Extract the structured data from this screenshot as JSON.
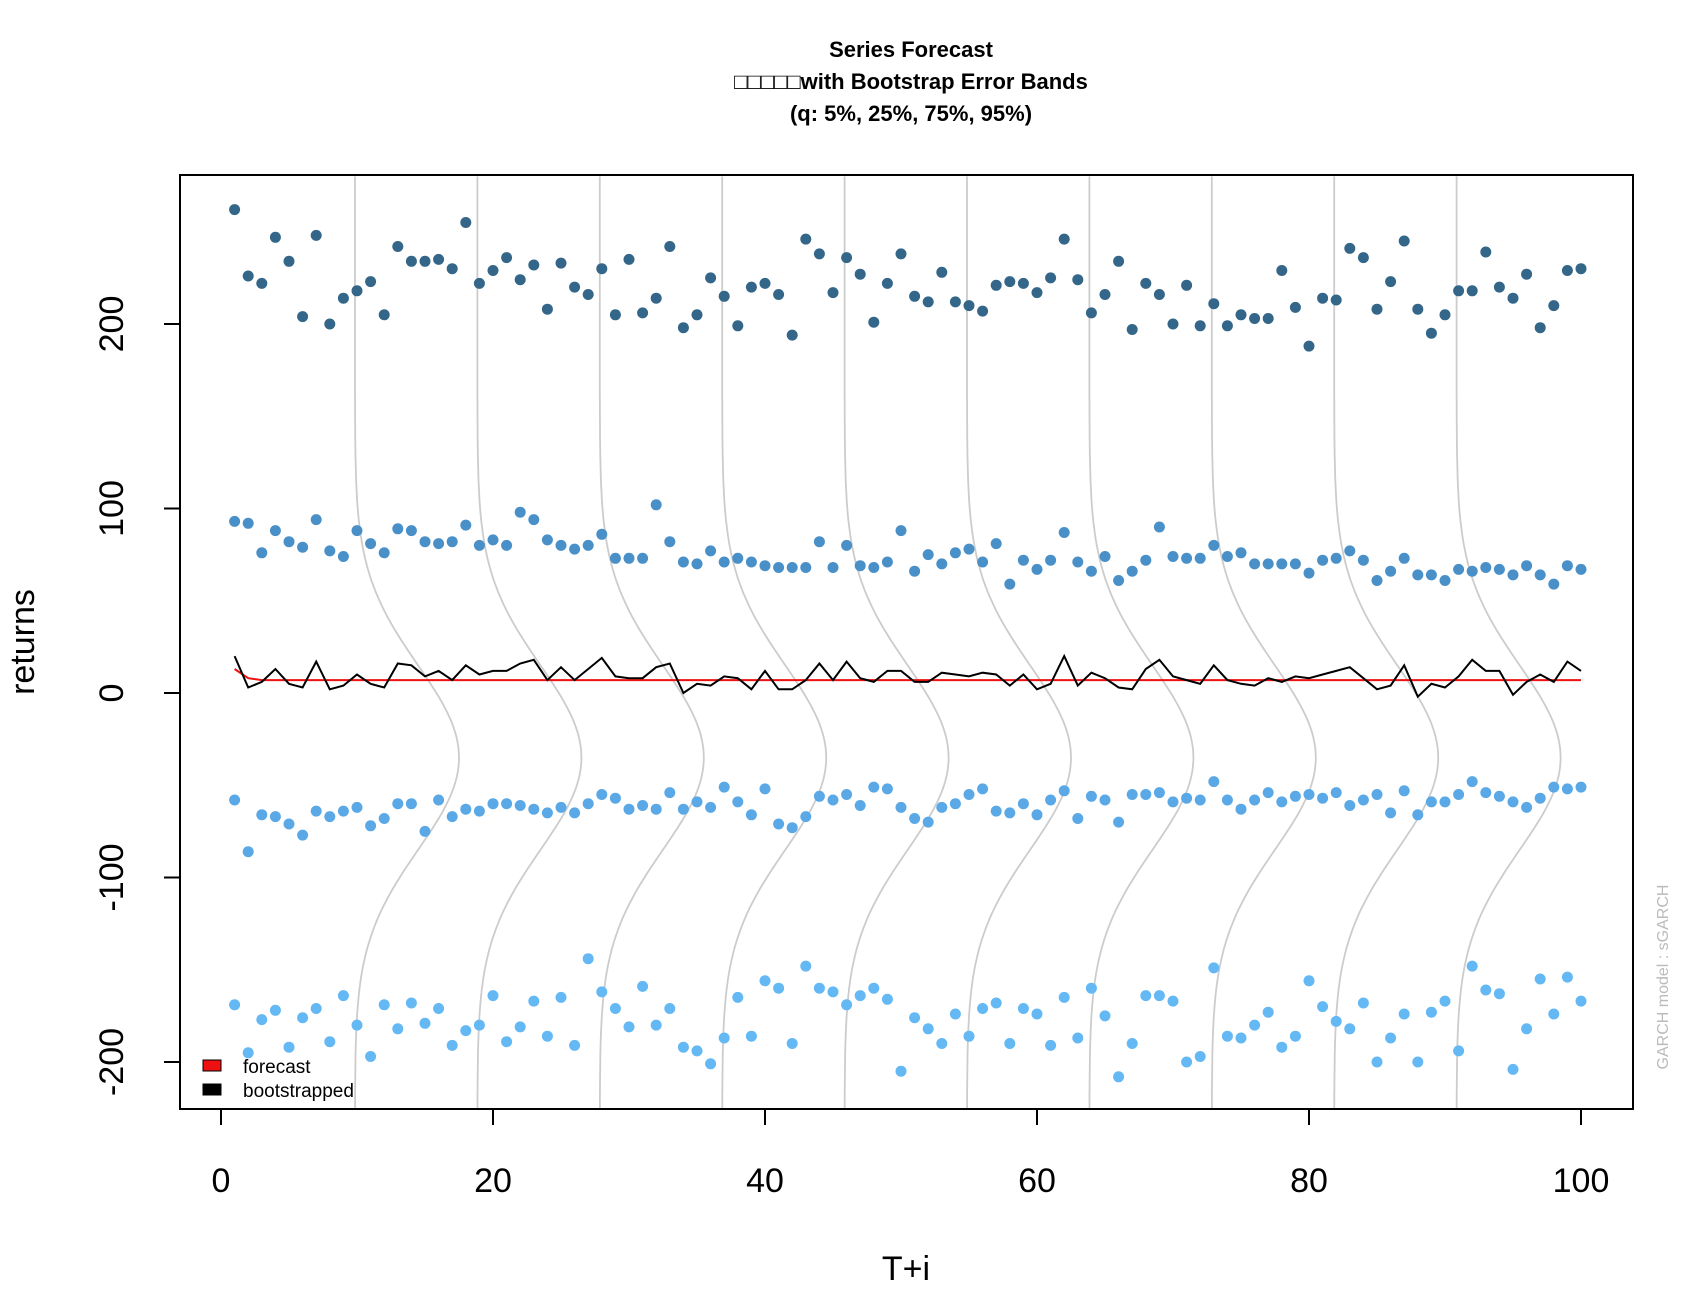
{
  "chart_data": {
    "type": "scatter",
    "title": "Series Forecast",
    "subtitle": "□□□□□with Bootstrap Error Bands",
    "subtitle2": "(q: 5%, 25%, 75%, 95%)",
    "xlabel": "T+i",
    "ylabel": "returns",
    "xlim": [
      -3,
      104
    ],
    "ylim": [
      -226,
      280
    ],
    "xticks": [
      "0",
      "20",
      "40",
      "60",
      "80",
      "100"
    ],
    "xtick_values": [
      0,
      20,
      40,
      60,
      80,
      100
    ],
    "yticks": [
      "-200",
      "-100",
      "0",
      "100",
      "200"
    ],
    "ytick_values": [
      -200,
      -100,
      0,
      100,
      200
    ],
    "watermark": "GARCH model : sGARCH",
    "legend": {
      "position": "bottom-left",
      "items": [
        {
          "label": "forecast",
          "color": "#ee1111"
        },
        {
          "label": "bootstrapped",
          "color": "#000000"
        }
      ]
    },
    "colors": {
      "q95": "#336688",
      "q75": "#4a90c8",
      "q25": "#5aa9e6",
      "q5": "#64b8f4",
      "forecast": "#ee1111",
      "bootstrapped": "#000000",
      "density": "#cccccc"
    },
    "density_positions": [
      10,
      19,
      28,
      37,
      46,
      55,
      64,
      73,
      82,
      91
    ],
    "series": [
      {
        "name": "q95",
        "color": "#336688",
        "values": [
          262,
          226,
          222,
          247,
          234,
          204,
          248,
          200,
          214,
          218,
          223,
          205,
          242,
          234,
          234,
          235,
          230,
          255,
          222,
          229,
          236,
          224,
          232,
          208,
          233,
          220,
          216,
          230,
          205,
          235,
          206,
          214,
          242,
          198,
          205,
          225,
          215,
          199,
          220,
          222,
          216,
          194,
          246,
          238,
          217,
          236,
          227,
          201,
          222,
          238,
          215,
          212,
          228,
          212,
          210,
          207,
          221,
          223,
          222,
          217,
          225,
          246,
          224,
          206,
          216,
          234,
          197,
          222,
          216,
          200,
          221,
          199,
          211,
          199,
          205,
          203,
          203,
          229,
          209,
          188,
          214,
          213,
          241,
          236,
          208,
          223,
          245,
          208,
          195,
          205,
          218,
          218,
          239,
          220,
          214,
          227,
          198,
          210,
          229,
          230
        ]
      },
      {
        "name": "q75",
        "color": "#4a90c8",
        "values": [
          93,
          92,
          76,
          88,
          82,
          79,
          94,
          77,
          74,
          88,
          81,
          76,
          89,
          88,
          82,
          81,
          82,
          91,
          80,
          83,
          80,
          98,
          94,
          83,
          80,
          78,
          80,
          86,
          73,
          73,
          73,
          102,
          82,
          71,
          70,
          77,
          71,
          73,
          71,
          69,
          68,
          68,
          68,
          82,
          68,
          80,
          69,
          68,
          71,
          88,
          66,
          75,
          70,
          76,
          78,
          71,
          81,
          59,
          72,
          67,
          72,
          87,
          71,
          66,
          74,
          61,
          66,
          72,
          90,
          74,
          73,
          73,
          80,
          74,
          76,
          70,
          70,
          70,
          70,
          65,
          72,
          73,
          77,
          72,
          61,
          66,
          73,
          64,
          64,
          61,
          67,
          66,
          68,
          67,
          64,
          69,
          64,
          59,
          69,
          67
        ]
      },
      {
        "name": "q25",
        "color": "#5aa9e6",
        "values": [
          -58,
          -86,
          -66,
          -67,
          -71,
          -77,
          -64,
          -67,
          -64,
          -62,
          -72,
          -68,
          -60,
          -60,
          -75,
          -58,
          -67,
          -63,
          -64,
          -60,
          -60,
          -61,
          -63,
          -65,
          -62,
          -65,
          -60,
          -55,
          -57,
          -63,
          -61,
          -63,
          -54,
          -63,
          -59,
          -62,
          -51,
          -59,
          -66,
          -52,
          -71,
          -73,
          -67,
          -56,
          -58,
          -55,
          -61,
          -51,
          -52,
          -62,
          -68,
          -70,
          -62,
          -60,
          -55,
          -52,
          -64,
          -65,
          -60,
          -66,
          -58,
          -53,
          -68,
          -56,
          -58,
          -70,
          -55,
          -55,
          -54,
          -59,
          -57,
          -58,
          -48,
          -58,
          -63,
          -58,
          -54,
          -59,
          -56,
          -55,
          -57,
          -54,
          -61,
          -58,
          -55,
          -65,
          -53,
          -66,
          -59,
          -59,
          -55,
          -48,
          -54,
          -56,
          -59,
          -62,
          -57,
          -51,
          -52,
          -51
        ]
      },
      {
        "name": "q5",
        "color": "#64b8f4",
        "values": [
          -169,
          -195,
          -177,
          -172,
          -192,
          -176,
          -171,
          -189,
          -164,
          -180,
          -197,
          -169,
          -182,
          -168,
          -179,
          -171,
          -191,
          -183,
          -180,
          -164,
          -189,
          -181,
          -167,
          -186,
          -165,
          -191,
          -144,
          -162,
          -171,
          -181,
          -159,
          -180,
          -171,
          -192,
          -194,
          -201,
          -187,
          -165,
          -186,
          -156,
          -160,
          -190,
          -148,
          -160,
          -162,
          -169,
          -164,
          -160,
          -166,
          -205,
          -176,
          -182,
          -190,
          -174,
          -186,
          -171,
          -168,
          -190,
          -171,
          -174,
          -191,
          -165,
          -187,
          -160,
          -175,
          -208,
          -190,
          -164,
          -164,
          -167,
          -200,
          -197,
          -149,
          -186,
          -187,
          -180,
          -173,
          -192,
          -186,
          -156,
          -170,
          -178,
          -182,
          -168,
          -200,
          -187,
          -174,
          -200,
          -173,
          -167,
          -194,
          -148,
          -161,
          -163,
          -204,
          -182,
          -155,
          -174,
          -154,
          -167
        ]
      },
      {
        "name": "forecast",
        "type": "line",
        "color": "#ee1111",
        "values": [
          13,
          8,
          7,
          7,
          7,
          7,
          7,
          7,
          7,
          7,
          7,
          7,
          7,
          7,
          7,
          7,
          7,
          7,
          7,
          7,
          7,
          7,
          7,
          7,
          7,
          7,
          7,
          7,
          7,
          7,
          7,
          7,
          7,
          7,
          7,
          7,
          7,
          7,
          7,
          7,
          7,
          7,
          7,
          7,
          7,
          7,
          7,
          7,
          7,
          7,
          7,
          7,
          7,
          7,
          7,
          7,
          7,
          7,
          7,
          7,
          7,
          7,
          7,
          7,
          7,
          7,
          7,
          7,
          7,
          7,
          7,
          7,
          7,
          7,
          7,
          7,
          7,
          7,
          7,
          7,
          7,
          7,
          7,
          7,
          7,
          7,
          7,
          7,
          7,
          7,
          7,
          7,
          7,
          7,
          7,
          7,
          7,
          7,
          7,
          7
        ]
      },
      {
        "name": "bootstrapped",
        "type": "line",
        "color": "#000000",
        "values": [
          20,
          3,
          6,
          13,
          5,
          3,
          17,
          2,
          4,
          10,
          5,
          3,
          16,
          15,
          9,
          12,
          7,
          15,
          10,
          12,
          12,
          16,
          18,
          7,
          14,
          7,
          13,
          19,
          9,
          8,
          8,
          14,
          16,
          0,
          5,
          4,
          9,
          8,
          2,
          12,
          2,
          2,
          7,
          16,
          7,
          17,
          8,
          6,
          12,
          12,
          6,
          6,
          11,
          10,
          9,
          11,
          10,
          4,
          10,
          2,
          5,
          20,
          4,
          11,
          8,
          3,
          2,
          13,
          18,
          9,
          7,
          5,
          15,
          7,
          5,
          4,
          8,
          6,
          9,
          8,
          10,
          12,
          14,
          8,
          2,
          4,
          15,
          -2,
          5,
          3,
          9,
          18,
          12,
          12,
          -1,
          6,
          10,
          6,
          17,
          12
        ]
      }
    ]
  }
}
